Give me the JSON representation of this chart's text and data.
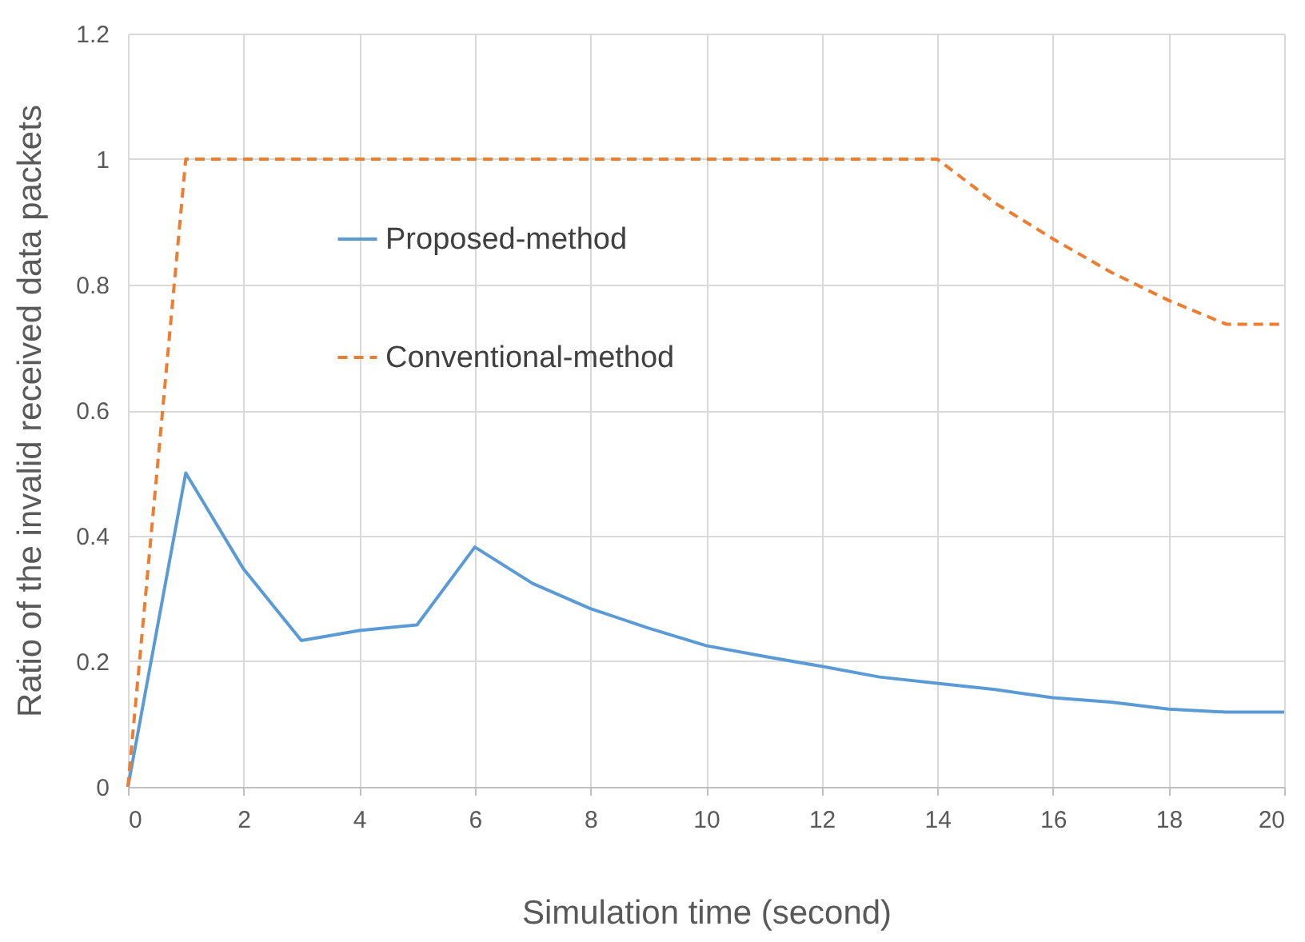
{
  "chart_data": {
    "type": "line",
    "xlabel": "Simulation time (second)",
    "ylabel": "Ratio of the invalid received data packets",
    "x": [
      0,
      1,
      2,
      3,
      4,
      5,
      6,
      7,
      8,
      9,
      10,
      11,
      12,
      13,
      14,
      15,
      16,
      17,
      18,
      19,
      20
    ],
    "series": [
      {
        "name": "Proposed-method",
        "color": "#5b9bd5",
        "line_style": "solid",
        "values": [
          0,
          0.5,
          0.347,
          0.233,
          0.249,
          0.258,
          0.382,
          0.324,
          0.284,
          0.253,
          0.225,
          0.208,
          0.192,
          0.175,
          0.165,
          0.155,
          0.142,
          0.135,
          0.124,
          0.119,
          0.119
        ]
      },
      {
        "name": "Conventional-method",
        "color": "#ed7d31",
        "line_style": "dashed",
        "values": [
          0,
          1,
          1,
          1,
          1,
          1,
          1,
          1,
          1,
          1,
          1,
          1,
          1,
          1,
          1,
          0.93,
          0.873,
          0.82,
          0.775,
          0.737,
          0.737
        ]
      }
    ],
    "xlim": [
      0,
      20
    ],
    "xticks": [
      0,
      2,
      4,
      6,
      8,
      10,
      12,
      14,
      16,
      18,
      20
    ],
    "ylim": [
      0,
      1.2
    ],
    "yticks": [
      0,
      0.2,
      0.4,
      0.6,
      0.8,
      1,
      1.2
    ],
    "grid": true,
    "legend": "top left"
  }
}
